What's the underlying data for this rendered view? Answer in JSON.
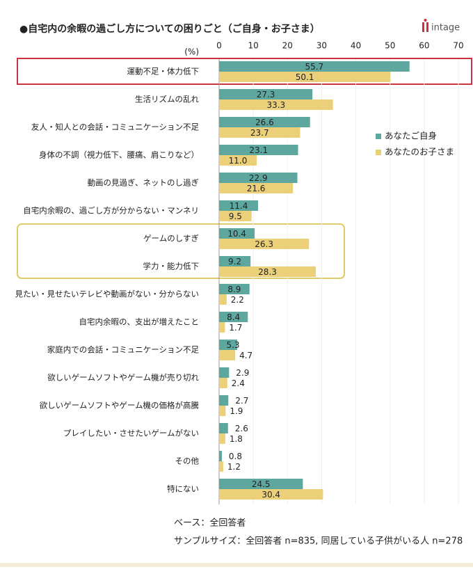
{
  "chart_data": {
    "type": "bar",
    "orientation": "horizontal",
    "title": "●自宅内の余暇の過ごし方についての困りごと（ご自身・お子さま）",
    "logo": "intage",
    "unit_label": "(%)",
    "categories": [
      "運動不足・体力低下",
      "生活リズムの乱れ",
      "友人・知人との会話・コミュニケーション不足",
      "身体の不調（視力低下、腰痛、肩こりなど）",
      "動画の見過ぎ、ネットのし過ぎ",
      "自宅内余暇の、過ごし方が分からない・マンネリ",
      "ゲームのしすぎ",
      "学力・能力低下",
      "見たい・見せたいテレビや動画がない・分からない",
      "自宅内余暇の、支出が増えたこと",
      "家庭内での会話・コミュニケーション不足",
      "欲しいゲームソフトやゲーム機が売り切れ",
      "欲しいゲームソフトやゲーム機の価格が高騰",
      "プレイしたい・させたいゲームがない",
      "その他",
      "特にない"
    ],
    "series": [
      {
        "name": "あなたご自身",
        "color": "#5ea79f",
        "values": [
          55.7,
          27.3,
          26.6,
          23.1,
          22.9,
          11.4,
          10.4,
          9.2,
          8.9,
          8.4,
          5.3,
          2.9,
          2.7,
          2.6,
          0.8,
          24.5
        ]
      },
      {
        "name": "あなたのお子さま",
        "color": "#ebcf79",
        "values": [
          50.1,
          33.3,
          23.7,
          11.0,
          21.6,
          9.5,
          26.3,
          28.3,
          2.2,
          1.7,
          4.7,
          2.4,
          1.9,
          1.8,
          1.2,
          30.4
        ],
        "value_labels": [
          "50.1",
          "33.3",
          "23.7",
          "11.0",
          "21.6",
          "9.5",
          "26.3",
          "28.3",
          "2.2",
          "1.7",
          "4.7",
          "2.4",
          "1.9",
          "1.8",
          "1.2",
          "30.4"
        ]
      }
    ],
    "xlim": [
      0,
      70
    ],
    "xticks": [
      0,
      10,
      20,
      30,
      40,
      50,
      60,
      70
    ],
    "grid": true,
    "notes": [
      "ベース：全回答者",
      "サンプルサイズ：全回答者 n=835, 同居している子供がいる人 n=278"
    ]
  }
}
